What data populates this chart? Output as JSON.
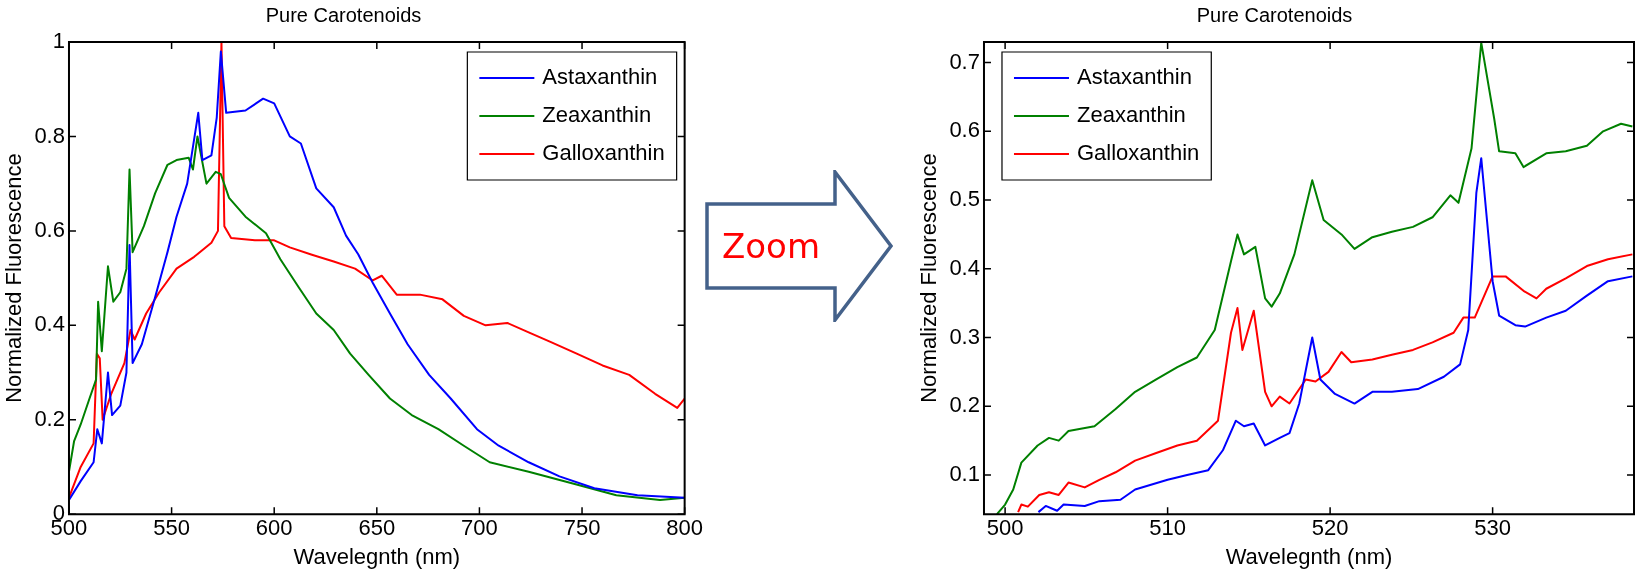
{
  "chart_data": [
    {
      "type": "line",
      "title": "Pure Carotenoids",
      "xlabel": "Wavelegnth (nm)",
      "ylabel": "Normalized Fluorescence",
      "xlim": [
        500,
        800
      ],
      "ylim": [
        0,
        1
      ],
      "xticks": [
        500,
        550,
        600,
        650,
        700,
        750,
        800
      ],
      "yticks": [
        0,
        0.2,
        0.4,
        0.6,
        0.8,
        1
      ],
      "grid": false,
      "legend": "top right",
      "marker": "none",
      "line_style": "solid",
      "series": [
        {
          "name": "Astaxanthin",
          "color": "#0000ff",
          "x": [
            500,
            505.7,
            512,
            513.8,
            516,
            519,
            521,
            525,
            528,
            529.5,
            531,
            535.5,
            542,
            548,
            552.4,
            557.6,
            563,
            565,
            569.4,
            572,
            574,
            576.6,
            586,
            594.6,
            600,
            607.6,
            613,
            620.5,
            629,
            635,
            641,
            648,
            656.4,
            665,
            675.5,
            686,
            698.8,
            709.4,
            724,
            739,
            756,
            777,
            800
          ],
          "values": [
            0.03,
            0.07,
            0.11,
            0.18,
            0.15,
            0.3,
            0.21,
            0.23,
            0.3,
            0.57,
            0.32,
            0.36,
            0.46,
            0.555,
            0.63,
            0.7,
            0.85,
            0.75,
            0.76,
            0.84,
            0.98,
            0.85,
            0.855,
            0.88,
            0.87,
            0.8,
            0.785,
            0.69,
            0.65,
            0.59,
            0.55,
            0.49,
            0.425,
            0.36,
            0.295,
            0.245,
            0.18,
            0.145,
            0.11,
            0.08,
            0.055,
            0.04,
            0.035
          ]
        },
        {
          "name": "Zeaxanthin",
          "color": "#008000",
          "x": [
            500,
            502.5,
            505.7,
            510,
            513.2,
            514.2,
            516,
            519,
            521.6,
            525,
            528,
            529.5,
            531,
            536.5,
            542,
            548,
            552.4,
            558.3,
            560.4,
            562.6,
            567,
            571.5,
            574,
            578,
            586,
            596,
            603,
            612,
            620.5,
            629,
            637,
            646,
            656.4,
            667,
            680,
            692.4,
            705,
            724,
            745.5,
            766.7,
            788,
            800
          ],
          "values": [
            0.09,
            0.155,
            0.19,
            0.245,
            0.285,
            0.45,
            0.345,
            0.525,
            0.45,
            0.47,
            0.52,
            0.73,
            0.555,
            0.61,
            0.68,
            0.74,
            0.75,
            0.755,
            0.73,
            0.8,
            0.7,
            0.725,
            0.72,
            0.67,
            0.63,
            0.595,
            0.54,
            0.48,
            0.425,
            0.39,
            0.34,
            0.295,
            0.245,
            0.21,
            0.18,
            0.145,
            0.11,
            0.09,
            0.065,
            0.04,
            0.03,
            0.035
          ]
        },
        {
          "name": "Galloxanthin",
          "color": "#ff0000",
          "x": [
            500,
            505.7,
            512,
            513.6,
            515,
            516.4,
            520.6,
            527,
            530,
            532,
            537.6,
            544,
            552.4,
            561,
            569.4,
            572.6,
            574.3,
            575.7,
            579,
            590.6,
            600,
            607.6,
            618,
            629,
            639.4,
            648,
            652.4,
            659.7,
            671,
            682,
            692.4,
            703,
            713.6,
            724,
            734.6,
            747.4,
            760,
            773,
            785.6,
            796.4,
            800
          ],
          "values": [
            0.035,
            0.1,
            0.15,
            0.34,
            0.33,
            0.2,
            0.255,
            0.32,
            0.39,
            0.37,
            0.425,
            0.47,
            0.52,
            0.545,
            0.575,
            0.6,
            1,
            0.61,
            0.585,
            0.58,
            0.58,
            0.565,
            0.55,
            0.535,
            0.52,
            0.495,
            0.505,
            0.465,
            0.465,
            0.455,
            0.42,
            0.4,
            0.405,
            0.385,
            0.365,
            0.34,
            0.315,
            0.295,
            0.255,
            0.225,
            0.245
          ]
        }
      ]
    },
    {
      "type": "other",
      "title": "Zoom"
    },
    {
      "type": "line",
      "title": "Pure Carotenoids",
      "xlabel": "Wavelegnth (nm)",
      "ylabel": "Normalized Fluorescence",
      "xlim": [
        498.7,
        538.7
      ],
      "ylim": [
        0.043,
        0.73
      ],
      "xticks": [
        500,
        510,
        520,
        530
      ],
      "yticks": [
        0.1,
        0.2,
        0.3,
        0.4,
        0.5,
        0.6,
        0.7
      ],
      "grid": false,
      "legend": "top left",
      "marker": "none",
      "line_style": "solid",
      "series": [
        {
          "name": "Astaxanthin",
          "color": "#0000ff",
          "x": [
            502.05,
            502.5,
            503.2,
            503.6,
            504.9,
            505.8,
            507.1,
            508,
            510,
            511.2,
            512.5,
            513.4,
            514.2,
            514.7,
            515.3,
            516,
            516.9,
            517.5,
            518.1,
            518.9,
            519.4,
            520.3,
            521.5,
            522.6,
            523.8,
            525.4,
            527,
            528,
            528.5,
            529,
            529.3,
            530,
            530.4,
            531.4,
            532,
            533.3,
            534.5,
            535.8,
            537.1,
            538.6
          ],
          "values": [
            0.046,
            0.055,
            0.048,
            0.057,
            0.055,
            0.062,
            0.064,
            0.079,
            0.093,
            0.1,
            0.107,
            0.136,
            0.179,
            0.171,
            0.175,
            0.143,
            0.154,
            0.161,
            0.204,
            0.3,
            0.239,
            0.218,
            0.204,
            0.221,
            0.221,
            0.225,
            0.243,
            0.261,
            0.311,
            0.511,
            0.561,
            0.382,
            0.332,
            0.318,
            0.316,
            0.329,
            0.339,
            0.361,
            0.382,
            0.389
          ]
        },
        {
          "name": "Zeaxanthin",
          "color": "#008000",
          "x": [
            499.5,
            500,
            500.5,
            501,
            502,
            502.7,
            503.3,
            503.9,
            505.5,
            506.8,
            508,
            509.3,
            510.6,
            511.8,
            512.9,
            513.9,
            514.3,
            514.7,
            515.4,
            516,
            516.4,
            516.9,
            517.8,
            518.9,
            519.6,
            520.7,
            521.5,
            522.6,
            523.8,
            525.1,
            526.3,
            527.4,
            527.9,
            528.7,
            529.3,
            530.1,
            530.4,
            531.4,
            531.9,
            533.3,
            534.5,
            535.8,
            536.8,
            537.9,
            538.6
          ],
          "values": [
            0.043,
            0.057,
            0.079,
            0.118,
            0.143,
            0.154,
            0.15,
            0.164,
            0.171,
            0.196,
            0.221,
            0.239,
            0.257,
            0.271,
            0.311,
            0.411,
            0.45,
            0.421,
            0.432,
            0.357,
            0.345,
            0.364,
            0.421,
            0.529,
            0.471,
            0.45,
            0.429,
            0.446,
            0.454,
            0.461,
            0.475,
            0.507,
            0.496,
            0.575,
            0.729,
            0.618,
            0.571,
            0.568,
            0.548,
            0.568,
            0.571,
            0.579,
            0.6,
            0.611,
            0.607
          ]
        },
        {
          "name": "Galloxanthin",
          "color": "#ff0000",
          "x": [
            500.8,
            501,
            501.4,
            502.1,
            502.7,
            503.3,
            503.9,
            504.9,
            505.8,
            506.8,
            508,
            509.3,
            510.6,
            511.8,
            513.1,
            513.9,
            514.3,
            514.6,
            515.3,
            516,
            516.4,
            516.9,
            517.5,
            518.5,
            519.1,
            519.9,
            520.7,
            521.3,
            522.6,
            523.8,
            525.1,
            526.3,
            527.6,
            528.2,
            528.9,
            530,
            530.8,
            531.9,
            532.7,
            533.3,
            534.5,
            535.8,
            537.1,
            538.6
          ],
          "values": [
            0.046,
            0.057,
            0.054,
            0.071,
            0.075,
            0.071,
            0.089,
            0.082,
            0.093,
            0.104,
            0.121,
            0.132,
            0.143,
            0.15,
            0.179,
            0.307,
            0.343,
            0.282,
            0.339,
            0.221,
            0.2,
            0.214,
            0.204,
            0.239,
            0.236,
            0.25,
            0.279,
            0.264,
            0.268,
            0.275,
            0.282,
            0.293,
            0.307,
            0.329,
            0.329,
            0.389,
            0.389,
            0.368,
            0.357,
            0.371,
            0.386,
            0.404,
            0.414,
            0.421
          ]
        }
      ]
    }
  ]
}
